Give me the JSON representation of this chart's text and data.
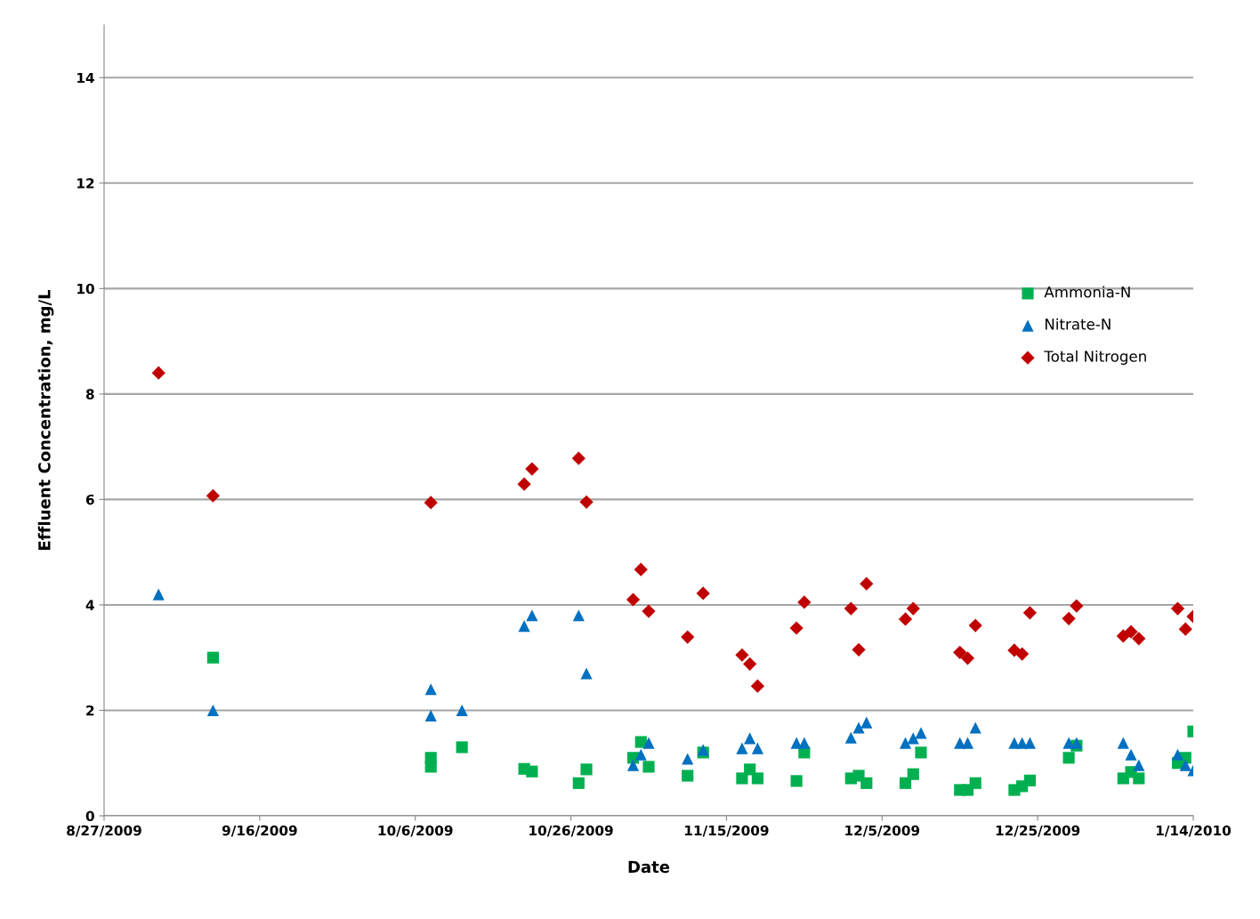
{
  "chart_data": {
    "type": "scatter",
    "xlabel": "Date",
    "ylabel": "Effluent Concentration, mg/L",
    "xlim": [
      "2009-08-27",
      "2010-01-14"
    ],
    "xticks": [
      {
        "value": "2009-08-27",
        "label": "8/27/2009"
      },
      {
        "value": "2009-09-16",
        "label": "9/16/2009"
      },
      {
        "value": "2009-10-06",
        "label": "10/6/2009"
      },
      {
        "value": "2009-10-26",
        "label": "10/26/2009"
      },
      {
        "value": "2009-11-15",
        "label": "11/15/2009"
      },
      {
        "value": "2009-12-05",
        "label": "12/5/2009"
      },
      {
        "value": "2009-12-25",
        "label": "12/25/2009"
      },
      {
        "value": "2010-01-14",
        "label": "1/14/2010"
      }
    ],
    "ylim": [
      0,
      15
    ],
    "yticks": [
      0,
      2,
      4,
      6,
      8,
      10,
      12,
      14
    ],
    "grid": "y",
    "legend": "right",
    "series": [
      {
        "name": "Ammonia-N",
        "color": "#00b050",
        "marker": "square",
        "x": [
          "2009-09-10",
          "2009-10-08",
          "2009-10-08",
          "2009-10-12",
          "2009-10-20",
          "2009-10-21",
          "2009-10-27",
          "2009-10-28",
          "2009-11-03",
          "2009-11-04",
          "2009-11-05",
          "2009-11-10",
          "2009-11-12",
          "2009-11-17",
          "2009-11-18",
          "2009-11-19",
          "2009-11-24",
          "2009-11-25",
          "2009-12-01",
          "2009-12-02",
          "2009-12-03",
          "2009-12-08",
          "2009-12-09",
          "2009-12-10",
          "2009-12-15",
          "2009-12-16",
          "2009-12-17",
          "2009-12-22",
          "2009-12-23",
          "2009-12-24",
          "2009-12-29",
          "2009-12-30",
          "2010-01-05",
          "2010-01-06",
          "2010-01-07",
          "2010-01-12",
          "2010-01-13",
          "2010-01-14"
        ],
        "values": [
          3.0,
          1.1,
          0.93,
          1.3,
          0.89,
          0.84,
          0.62,
          0.88,
          1.1,
          1.4,
          0.93,
          0.76,
          1.2,
          0.71,
          0.88,
          0.71,
          0.66,
          1.2,
          0.71,
          0.76,
          0.62,
          0.62,
          0.79,
          1.2,
          0.49,
          0.49,
          0.62,
          0.49,
          0.56,
          0.67,
          1.1,
          1.33,
          0.71,
          0.83,
          0.71,
          1.0,
          1.1,
          1.6
        ]
      },
      {
        "name": "Nitrate-N",
        "color": "#0070c0",
        "marker": "triangle",
        "x": [
          "2009-09-03",
          "2009-09-10",
          "2009-10-08",
          "2009-10-08",
          "2009-10-12",
          "2009-10-20",
          "2009-10-21",
          "2009-10-27",
          "2009-10-28",
          "2009-11-03",
          "2009-11-04",
          "2009-11-05",
          "2009-11-10",
          "2009-11-12",
          "2009-11-17",
          "2009-11-18",
          "2009-11-19",
          "2009-11-24",
          "2009-11-25",
          "2009-12-01",
          "2009-12-02",
          "2009-12-03",
          "2009-12-08",
          "2009-12-09",
          "2009-12-10",
          "2009-12-15",
          "2009-12-16",
          "2009-12-17",
          "2009-12-22",
          "2009-12-23",
          "2009-12-24",
          "2009-12-29",
          "2009-12-30",
          "2010-01-05",
          "2010-01-06",
          "2010-01-07",
          "2010-01-12",
          "2010-01-13",
          "2010-01-14"
        ],
        "values": [
          4.2,
          2.0,
          2.4,
          1.9,
          2.0,
          3.6,
          3.8,
          3.8,
          2.7,
          0.96,
          1.16,
          1.38,
          1.08,
          1.25,
          1.28,
          1.47,
          1.28,
          1.38,
          1.38,
          1.48,
          1.67,
          1.77,
          1.38,
          1.47,
          1.57,
          1.38,
          1.38,
          1.67,
          1.38,
          1.38,
          1.38,
          1.38,
          1.38,
          1.38,
          1.16,
          0.96,
          1.16,
          0.96,
          0.86
        ]
      },
      {
        "name": "Total Nitrogen",
        "color": "#c00000",
        "marker": "diamond",
        "x": [
          "2009-09-03",
          "2009-09-10",
          "2009-10-08",
          "2009-10-20",
          "2009-10-21",
          "2009-10-27",
          "2009-10-28",
          "2009-11-03",
          "2009-11-04",
          "2009-11-05",
          "2009-11-10",
          "2009-11-12",
          "2009-11-17",
          "2009-11-18",
          "2009-11-19",
          "2009-11-24",
          "2009-11-25",
          "2009-12-01",
          "2009-12-02",
          "2009-12-03",
          "2009-12-08",
          "2009-12-09",
          "2009-12-15",
          "2009-12-16",
          "2009-12-17",
          "2009-12-22",
          "2009-12-23",
          "2009-12-24",
          "2009-12-29",
          "2009-12-30",
          "2010-01-05",
          "2010-01-06",
          "2010-01-07",
          "2010-01-12",
          "2010-01-13",
          "2010-01-14"
        ],
        "values": [
          8.4,
          6.07,
          5.94,
          6.29,
          6.58,
          6.78,
          5.95,
          4.1,
          4.67,
          3.88,
          3.39,
          4.22,
          3.05,
          2.88,
          2.46,
          3.56,
          4.05,
          3.93,
          3.15,
          4.4,
          3.73,
          3.93,
          3.1,
          2.99,
          3.61,
          3.14,
          3.07,
          3.85,
          3.74,
          3.98,
          3.41,
          3.49,
          3.36,
          3.93,
          3.54,
          3.78
        ]
      }
    ]
  }
}
